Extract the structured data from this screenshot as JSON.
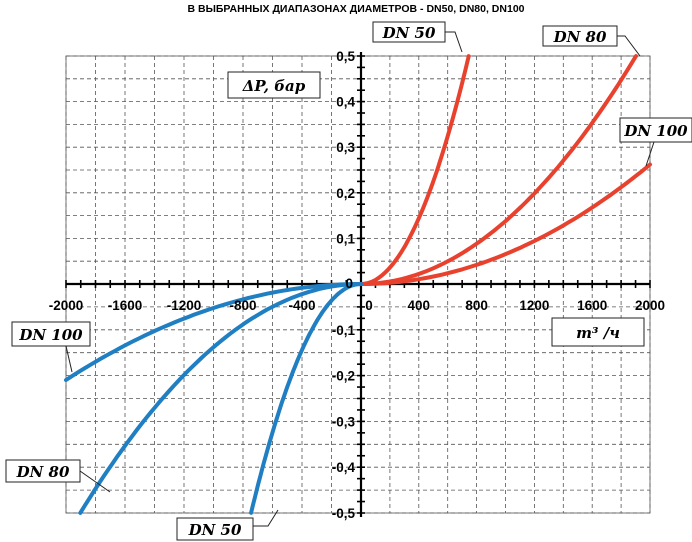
{
  "chart_data": {
    "type": "line",
    "title": "В ВЫБРАННЫХ ДИАПАЗОНАХ ДИАМЕТРОВ - DN50, DN80, DN100",
    "ylabel": "ΔP, бар",
    "xlabel": "m³ /ч",
    "xlim": [
      -2000,
      2000
    ],
    "ylim": [
      -0.5,
      0.5
    ],
    "x_ticks": [
      "-2000",
      "-1600",
      "-1200",
      "-800",
      "-400",
      "0",
      "400",
      "800",
      "1200",
      "1600",
      "2000"
    ],
    "y_ticks": [
      "0,5",
      "0,4",
      "0,3",
      "0,2",
      "0,1",
      "0",
      "-0,1",
      "-0,2",
      "-0,3",
      "-0,4",
      "-0,5"
    ],
    "grid": true,
    "colors": {
      "positive": "#e8422f",
      "negative": "#1f7fc2"
    },
    "series": [
      {
        "name": "DN 50",
        "k": 9e-07,
        "xmax": 745,
        "color": "#e8422f"
      },
      {
        "name": "DN 80",
        "k": 1.38e-07,
        "xmax": 1903,
        "color": "#e8422f"
      },
      {
        "name": "DN 100",
        "k": 6.55e-08,
        "xmax": 2000,
        "color": "#e8422f"
      },
      {
        "name": "DN 50",
        "k": -9e-07,
        "xmin": -745,
        "color": "#1f7fc2"
      },
      {
        "name": "DN 80",
        "k": -1.38e-07,
        "xmin": -1903,
        "color": "#1f7fc2"
      },
      {
        "name": "DN 100",
        "k": -5.24e-08,
        "xmin": -2000,
        "color": "#1f7fc2"
      }
    ],
    "callouts": {
      "pos_dn50": "DN 50",
      "pos_dn80": "DN 80",
      "pos_dn100": "DN 100",
      "neg_dn100": "DN 100",
      "neg_dn80": "DN 80",
      "neg_dn50": "DN 50"
    }
  }
}
